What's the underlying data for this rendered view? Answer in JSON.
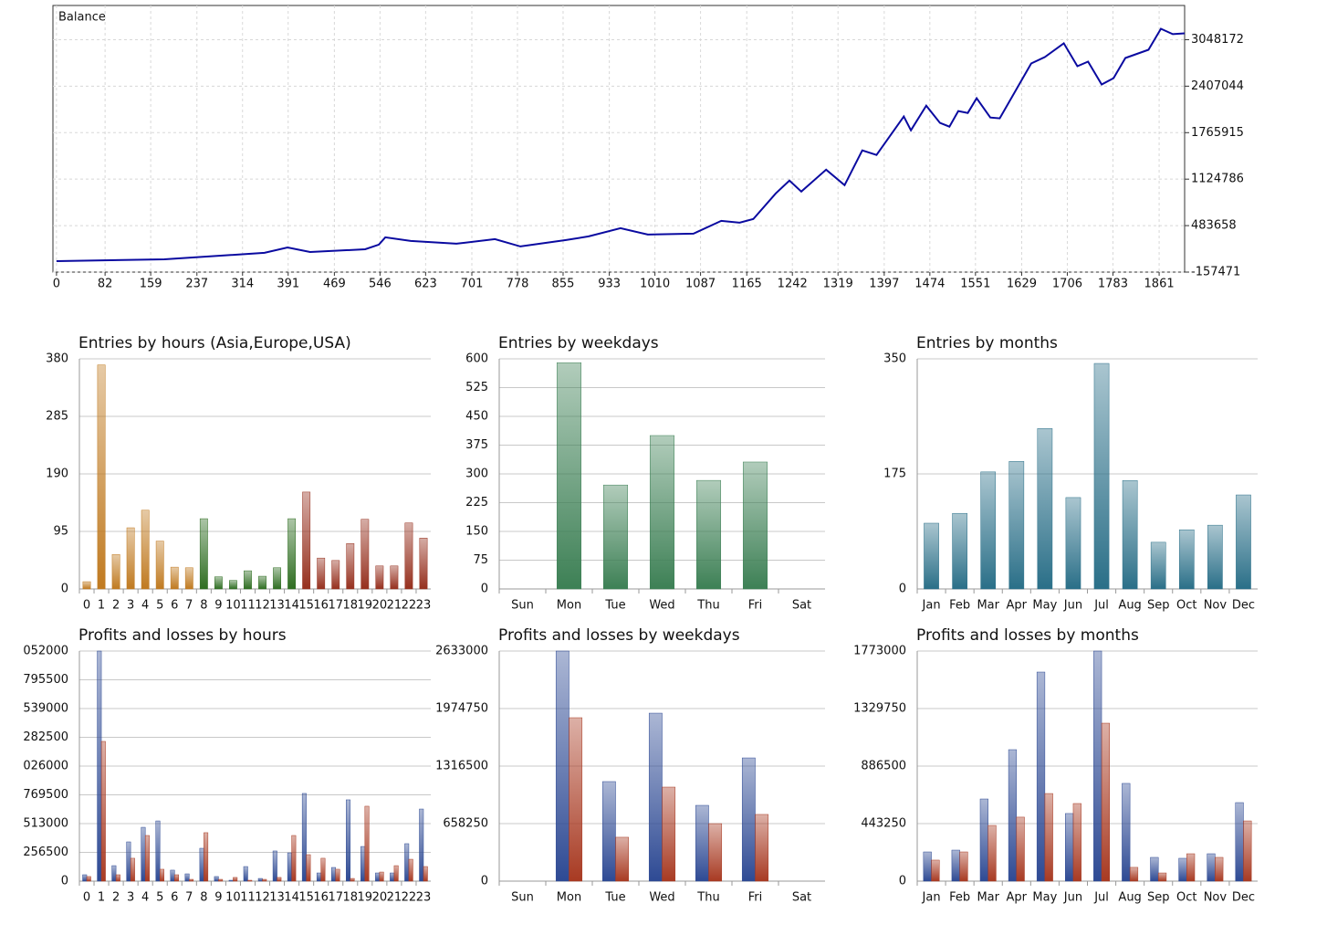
{
  "chart_data": [
    {
      "type": "line",
      "title": "Balance",
      "color": "#0a0aa0",
      "grid": true,
      "y_axis_side": "right",
      "x": [
        0,
        182,
        351,
        390,
        428,
        521,
        544,
        555,
        598,
        675,
        740,
        783,
        860,
        898,
        952,
        998,
        1075,
        1122,
        1153,
        1176,
        1214,
        1237,
        1257,
        1299,
        1330,
        1360,
        1384,
        1430,
        1442,
        1468,
        1491,
        1507,
        1522,
        1538,
        1553,
        1576,
        1592,
        1645,
        1668,
        1700,
        1723,
        1741,
        1764,
        1784,
        1804,
        1843,
        1864,
        1884,
        1904
      ],
      "values": [
        -6000,
        19000,
        108000,
        183000,
        120000,
        158000,
        221000,
        322000,
        272000,
        234000,
        297000,
        196000,
        284000,
        335000,
        448000,
        360000,
        373000,
        549000,
        524000,
        574000,
        928000,
        1105000,
        953000,
        1256000,
        1041000,
        1521000,
        1458000,
        1988000,
        1799000,
        2139000,
        1900000,
        1849000,
        2064000,
        2038000,
        2240000,
        1975000,
        1963000,
        2720000,
        2808000,
        2998000,
        2682000,
        2745000,
        2430000,
        2518000,
        2796000,
        2909000,
        3199000,
        3124000,
        3136000
      ],
      "xlim": [
        -6,
        1904
      ],
      "xticks": [
        0,
        82,
        159,
        237,
        314,
        391,
        469,
        546,
        623,
        701,
        778,
        855,
        933,
        1010,
        1087,
        1165,
        1242,
        1319,
        1397,
        1474,
        1551,
        1629,
        1706,
        1783,
        1861
      ],
      "ylim": [
        -157471,
        3520000
      ],
      "yticks": [
        -157471,
        483658,
        1124786,
        1765915,
        2407044,
        3048172
      ]
    },
    {
      "type": "bar",
      "title": "Entries by hours (Asia,Europe,USA)",
      "grid": true,
      "categories": [
        "0",
        "1",
        "2",
        "3",
        "4",
        "5",
        "6",
        "7",
        "8",
        "9",
        "10",
        "11",
        "12",
        "13",
        "14",
        "15",
        "16",
        "17",
        "18",
        "19",
        "20",
        "21",
        "22",
        "23"
      ],
      "values": [
        12,
        370,
        57,
        101,
        130,
        79,
        36,
        35,
        116,
        20,
        14,
        30,
        21,
        35,
        116,
        160,
        51,
        47,
        75,
        115,
        38,
        38,
        109,
        84
      ],
      "colors": [
        "#c07a20",
        "#c07a20",
        "#c07a20",
        "#c07a20",
        "#c07a20",
        "#c07a20",
        "#c07a20",
        "#c07a20",
        "#2f6e22",
        "#2f6e22",
        "#2f6e22",
        "#2f6e22",
        "#2f6e22",
        "#2f6e22",
        "#2f6e22",
        "#96301e",
        "#96301e",
        "#96301e",
        "#96301e",
        "#96301e",
        "#96301e",
        "#96301e",
        "#96301e",
        "#96301e"
      ],
      "ylim": [
        0,
        380
      ],
      "yticks": [
        0,
        95,
        190,
        285,
        380
      ]
    },
    {
      "type": "bar",
      "title": "Entries by weekdays",
      "grid": true,
      "color": "#3d8055",
      "categories": [
        "Sun",
        "Mon",
        "Tue",
        "Wed",
        "Thu",
        "Fri",
        "Sat"
      ],
      "values": [
        0,
        590,
        271,
        400,
        283,
        331,
        0
      ],
      "ylim": [
        0,
        600
      ],
      "yticks": [
        0,
        75,
        150,
        225,
        300,
        375,
        450,
        525,
        600
      ]
    },
    {
      "type": "bar",
      "title": "Entries by months",
      "grid": true,
      "color": "#2a6f88",
      "categories": [
        "Jan",
        "Feb",
        "Mar",
        "Apr",
        "May",
        "Jun",
        "Jul",
        "Aug",
        "Sep",
        "Oct",
        "Nov",
        "Dec"
      ],
      "values": [
        100,
        115,
        178,
        194,
        244,
        139,
        343,
        165,
        71,
        90,
        97,
        143
      ],
      "ylim": [
        0,
        350
      ],
      "yticks": [
        0,
        175,
        350
      ]
    },
    {
      "type": "bar",
      "title": "Profits and losses by hours",
      "grid": true,
      "categories": [
        "0",
        "1",
        "2",
        "3",
        "4",
        "5",
        "6",
        "7",
        "8",
        "9",
        "10",
        "11",
        "12",
        "13",
        "14",
        "15",
        "16",
        "17",
        "18",
        "19",
        "20",
        "21",
        "22",
        "23"
      ],
      "series": [
        {
          "color": "#2e4a94",
          "values": [
            57000,
            2052000,
            138000,
            350000,
            480000,
            537000,
            98000,
            65000,
            293000,
            41000,
            8000,
            130000,
            24000,
            269000,
            252000,
            782000,
            73000,
            122000,
            725000,
            309000,
            73000,
            73000,
            334000,
            643000
          ]
        },
        {
          "color": "#a83a22",
          "values": [
            41000,
            1246000,
            57000,
            204000,
            407000,
            106000,
            57000,
            16000,
            432000,
            16000,
            33000,
            8000,
            16000,
            33000,
            407000,
            236000,
            204000,
            106000,
            24000,
            668000,
            81000,
            138000,
            195000,
            130000
          ]
        }
      ],
      "ylim": [
        0,
        2052000
      ],
      "yticks": [
        0,
        256500,
        513000,
        769500,
        {
          "value": 1026000,
          "label": "026000"
        },
        {
          "value": 1282500,
          "label": "282500"
        },
        {
          "value": 1539000,
          "label": "539000"
        },
        {
          "value": 1795500,
          "label": "795500"
        },
        {
          "value": 2052000,
          "label": "052000"
        }
      ]
    },
    {
      "type": "bar",
      "title": "Profits and losses by weekdays",
      "grid": true,
      "categories": [
        "Sun",
        "Mon",
        "Tue",
        "Wed",
        "Thu",
        "Fri",
        "Sat"
      ],
      "series": [
        {
          "color": "#2e4a94",
          "values": [
            0,
            2633000,
            1139000,
            1922000,
            867000,
            1410000,
            0
          ]
        },
        {
          "color": "#a83a22",
          "values": [
            0,
            1870000,
            502000,
            1076000,
            658000,
            763000,
            0
          ]
        }
      ],
      "ylim": [
        0,
        2633000
      ],
      "yticks": [
        0,
        658250,
        1316500,
        1974750,
        2633000
      ]
    },
    {
      "type": "bar",
      "title": "Profits and losses by months",
      "grid": true,
      "categories": [
        "Jan",
        "Feb",
        "Mar",
        "Apr",
        "May",
        "Jun",
        "Jul",
        "Aug",
        "Sep",
        "Oct",
        "Nov",
        "Dec"
      ],
      "series": [
        {
          "color": "#2e4a94",
          "values": [
            225000,
            239000,
            633000,
            1013000,
            1611000,
            521000,
            1773000,
            753000,
            183000,
            176000,
            211000,
            605000
          ]
        },
        {
          "color": "#a83a22",
          "values": [
            162000,
            225000,
            429000,
            493000,
            675000,
            598000,
            1217000,
            106000,
            63000,
            211000,
            183000,
            464000
          ]
        }
      ],
      "ylim": [
        0,
        1773000
      ],
      "yticks": [
        0,
        443250,
        886500,
        1329750,
        1773000
      ]
    }
  ]
}
